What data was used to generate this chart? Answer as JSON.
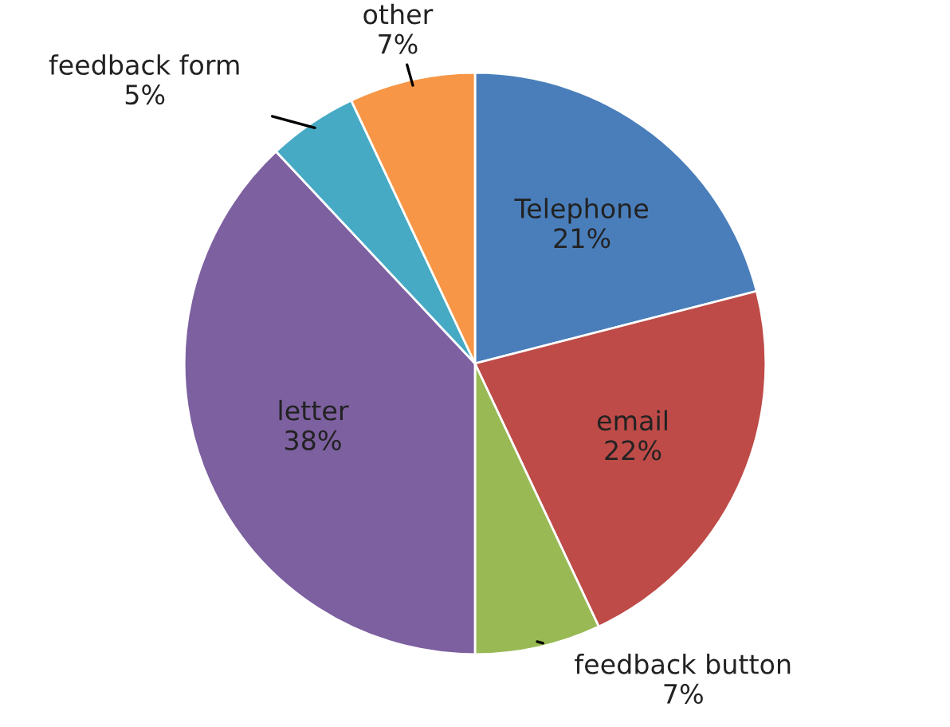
{
  "chart_data": {
    "type": "pie",
    "categories": [
      "Telephone",
      "email",
      "feedback button",
      "letter",
      "feedback form",
      "other"
    ],
    "values": [
      21,
      22,
      7,
      38,
      5,
      7
    ],
    "colors": [
      "#4a7ebb",
      "#be4b48",
      "#98b954",
      "#7d60a0",
      "#46aac5",
      "#f79646"
    ],
    "value_labels": [
      "21%",
      "22%",
      "7%",
      "38%",
      "5%",
      "7%"
    ],
    "legend": false
  }
}
